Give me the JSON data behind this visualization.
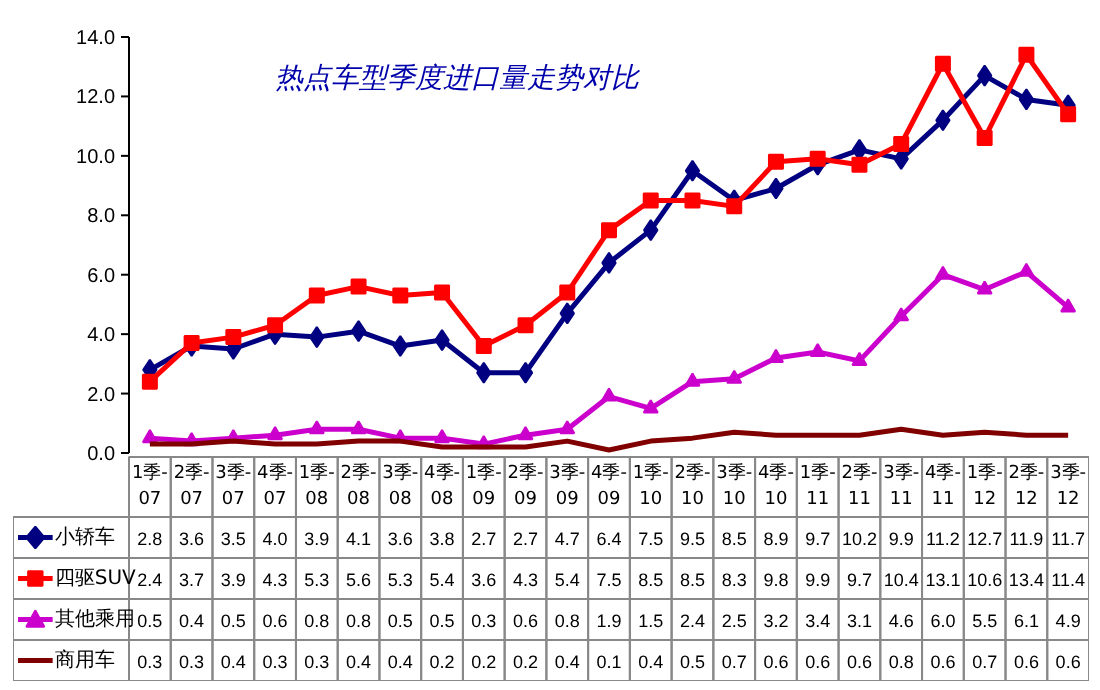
{
  "chart_data": {
    "type": "line",
    "title": "热点车型季度进口量走势对比",
    "categories": [
      "1季-07",
      "2季-07",
      "3季-07",
      "4季-07",
      "1季-08",
      "2季-08",
      "3季-08",
      "4季-08",
      "1季-09",
      "2季-09",
      "3季-09",
      "4季-09",
      "1季-10",
      "2季-10",
      "3季-10",
      "4季-10",
      "1季-11",
      "2季-11",
      "3季-11",
      "4季-11",
      "1季-12",
      "2季-12",
      "3季-12"
    ],
    "series": [
      {
        "name": "小轿车",
        "color": "#000080",
        "marker": "diamond",
        "values": [
          2.8,
          3.6,
          3.5,
          4.0,
          3.9,
          4.1,
          3.6,
          3.8,
          2.7,
          2.7,
          4.7,
          6.4,
          7.5,
          9.5,
          8.5,
          8.9,
          9.7,
          10.2,
          9.9,
          11.2,
          12.7,
          11.9,
          11.7
        ],
        "value_labels": [
          "2.8",
          "3.6",
          "3.5",
          "4.0",
          "3.9",
          "4.1",
          "3.6",
          "3.8",
          "2.7",
          "2.7",
          "4.7",
          "6.4",
          "7.5",
          "9.5",
          "8.5",
          "8.9",
          "9.7",
          "10.2",
          "9.9",
          "11.2",
          "12.7",
          "11.9",
          "11.7"
        ]
      },
      {
        "name": "四驱SUV",
        "color": "#ff0000",
        "marker": "square",
        "values": [
          2.4,
          3.7,
          3.9,
          4.3,
          5.3,
          5.6,
          5.3,
          5.4,
          3.6,
          4.3,
          5.4,
          7.5,
          8.5,
          8.5,
          8.3,
          9.8,
          9.9,
          9.7,
          10.4,
          13.1,
          10.6,
          13.4,
          11.4
        ],
        "value_labels": [
          "2.4",
          "3.7",
          "3.9",
          "4.3",
          "5.3",
          "5.6",
          "5.3",
          "5.4",
          "3.6",
          "4.3",
          "5.4",
          "7.5",
          "8.5",
          "8.5",
          "8.3",
          "9.8",
          "9.9",
          "9.7",
          "10.4",
          "13.1",
          "10.6",
          "13.4",
          "11.4"
        ]
      },
      {
        "name": "其他乘用",
        "color": "#cc00cc",
        "marker": "triangle",
        "values": [
          0.5,
          0.4,
          0.5,
          0.6,
          0.8,
          0.8,
          0.5,
          0.5,
          0.3,
          0.6,
          0.8,
          1.9,
          1.5,
          2.4,
          2.5,
          3.2,
          3.4,
          3.1,
          4.6,
          6.0,
          5.5,
          6.1,
          4.9
        ],
        "value_labels": [
          "0.5",
          "0.4",
          "0.5",
          "0.6",
          "0.8",
          "0.8",
          "0.5",
          "0.5",
          "0.3",
          "0.6",
          "0.8",
          "1.9",
          "1.5",
          "2.4",
          "2.5",
          "3.2",
          "3.4",
          "3.1",
          "4.6",
          "6.0",
          "5.5",
          "6.1",
          "4.9"
        ]
      },
      {
        "name": "商用车",
        "color": "#800000",
        "marker": "none",
        "values": [
          0.3,
          0.3,
          0.4,
          0.3,
          0.3,
          0.4,
          0.4,
          0.2,
          0.2,
          0.2,
          0.4,
          0.1,
          0.4,
          0.5,
          0.7,
          0.6,
          0.6,
          0.6,
          0.8,
          0.6,
          0.7,
          0.6,
          0.6
        ],
        "value_labels": [
          "0.3",
          "0.3",
          "0.4",
          "0.3",
          "0.3",
          "0.4",
          "0.4",
          "0.2",
          "0.2",
          "0.2",
          "0.4",
          "0.1",
          "0.4",
          "0.5",
          "0.7",
          "0.6",
          "0.6",
          "0.6",
          "0.8",
          "0.6",
          "0.7",
          "0.6",
          "0.6"
        ]
      }
    ],
    "ylim": [
      0,
      14
    ],
    "yticks": [
      {
        "value": 0,
        "label": "0.0"
      },
      {
        "value": 2,
        "label": "2.0"
      },
      {
        "value": 4,
        "label": "4.0"
      },
      {
        "value": 6,
        "label": "6.0"
      },
      {
        "value": 8,
        "label": "8.0"
      },
      {
        "value": 10,
        "label": "10.0"
      },
      {
        "value": 12,
        "label": "12.0"
      },
      {
        "value": 14,
        "label": "14.0"
      }
    ],
    "legend": "bottom"
  }
}
